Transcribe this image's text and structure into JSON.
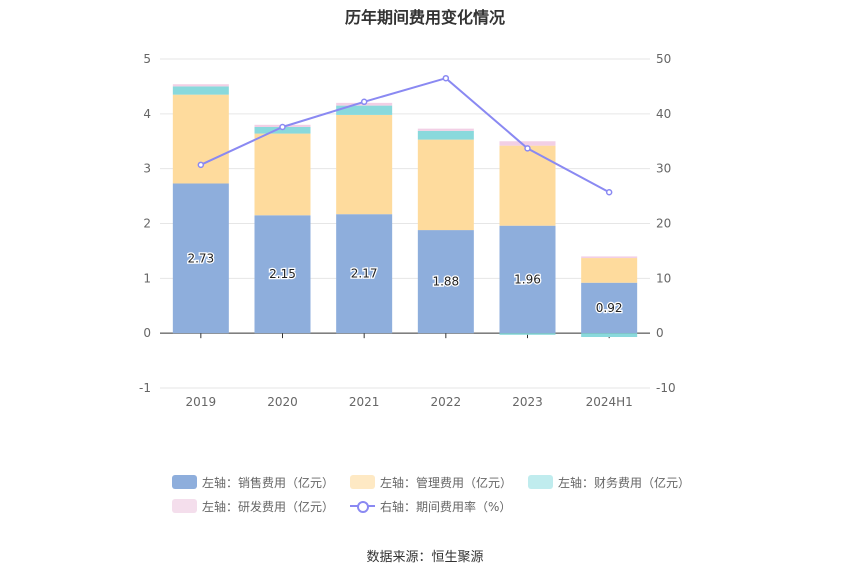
{
  "chart_data": {
    "type": "bar",
    "title": "历年期间费用变化情况",
    "categories": [
      "2019",
      "2020",
      "2021",
      "2022",
      "2023",
      "2024H1"
    ],
    "series": [
      {
        "name": "左轴：销售费用（亿元）",
        "axis": "left",
        "color": "#8eaedc",
        "values": [
          2.73,
          2.15,
          2.17,
          1.88,
          1.96,
          0.92
        ]
      },
      {
        "name": "左轴：管理费用（亿元）",
        "axis": "left",
        "color": "#fedb9d",
        "values": [
          1.62,
          1.49,
          1.81,
          1.65,
          1.46,
          0.45
        ]
      },
      {
        "name": "左轴：财务费用（亿元）",
        "axis": "left",
        "color": "#89d9dc",
        "values": [
          0.15,
          0.12,
          0.17,
          0.16,
          -0.03,
          -0.07
        ]
      },
      {
        "name": "左轴：研发费用（亿元）",
        "axis": "left",
        "color": "#f2cfe5",
        "values": [
          0.04,
          0.04,
          0.05,
          0.04,
          0.08,
          0.03
        ]
      },
      {
        "name": "右轴：期间费用率（%）",
        "axis": "right",
        "type": "line",
        "color": "#8a89f2",
        "values": [
          30.7,
          37.6,
          42.2,
          46.5,
          33.7,
          25.7
        ]
      }
    ],
    "data_labels": [
      "2.73",
      "2.15",
      "2.17",
      "1.88",
      "1.96",
      "0.92"
    ],
    "left_axis": {
      "ticks": [
        "-1",
        "0",
        "1",
        "2",
        "3",
        "4",
        "5"
      ],
      "range": [
        -1,
        5
      ]
    },
    "right_axis": {
      "ticks": [
        "-10",
        "0",
        "10",
        "20",
        "30",
        "40",
        "50"
      ],
      "range": [
        -10,
        50
      ]
    },
    "grid": true,
    "legend_position": "bottom"
  },
  "legend": {
    "row1": [
      "左轴：销售费用（亿元）",
      "左轴：管理费用（亿元）",
      "左轴：财务费用（亿元）"
    ],
    "row2": [
      "左轴：研发费用（亿元）",
      "右轴：期间费用率（%）"
    ]
  },
  "source": "数据来源：恒生聚源"
}
